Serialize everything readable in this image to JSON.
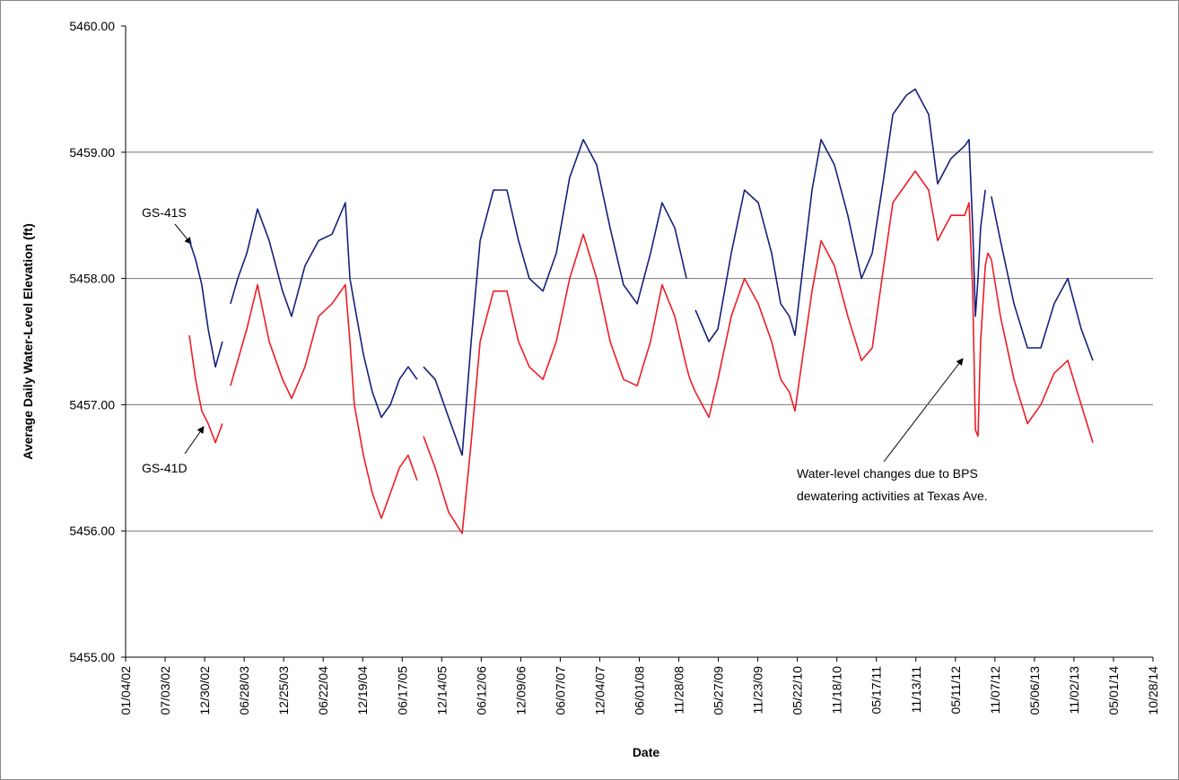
{
  "chart_data": {
    "type": "line",
    "x_label": "Date",
    "y_label": "Average Daily Water-Level Elevation  (ft)",
    "annotations": [
      {
        "text": [
          "GS-41S"
        ]
      },
      {
        "text": [
          "GS-41D"
        ]
      },
      {
        "text": [
          "Water-level changes due to BPS",
          "dewatering activities at Texas Ave."
        ]
      }
    ],
    "grid": true,
    "xlim": [
      "2002-01-04",
      "2014-10-28"
    ],
    "xticks": [
      {
        "value": "2002-01-04",
        "label": "01/04/02"
      },
      {
        "value": "2002-07-03",
        "label": "07/03/02"
      },
      {
        "value": "2002-12-30",
        "label": "12/30/02"
      },
      {
        "value": "2003-06-28",
        "label": "06/28/03"
      },
      {
        "value": "2003-12-25",
        "label": "12/25/03"
      },
      {
        "value": "2004-06-22",
        "label": "06/22/04"
      },
      {
        "value": "2004-12-19",
        "label": "12/19/04"
      },
      {
        "value": "2005-06-17",
        "label": "06/17/05"
      },
      {
        "value": "2005-12-14",
        "label": "12/14/05"
      },
      {
        "value": "2006-06-12",
        "label": "06/12/06"
      },
      {
        "value": "2006-12-09",
        "label": "12/09/06"
      },
      {
        "value": "2007-06-07",
        "label": "06/07/07"
      },
      {
        "value": "2007-12-04",
        "label": "12/04/07"
      },
      {
        "value": "2008-06-01",
        "label": "06/01/08"
      },
      {
        "value": "2008-11-28",
        "label": "11/28/08"
      },
      {
        "value": "2009-05-27",
        "label": "05/27/09"
      },
      {
        "value": "2009-11-23",
        "label": "11/23/09"
      },
      {
        "value": "2010-05-22",
        "label": "05/22/10"
      },
      {
        "value": "2010-11-18",
        "label": "11/18/10"
      },
      {
        "value": "2011-05-17",
        "label": "05/17/11"
      },
      {
        "value": "2011-11-13",
        "label": "11/13/11"
      },
      {
        "value": "2012-05-11",
        "label": "05/11/12"
      },
      {
        "value": "2012-11-07",
        "label": "11/07/12"
      },
      {
        "value": "2013-05-06",
        "label": "05/06/13"
      },
      {
        "value": "2013-11-02",
        "label": "11/02/13"
      },
      {
        "value": "2014-05-01",
        "label": "05/01/14"
      },
      {
        "value": "2014-10-28",
        "label": "10/28/14"
      }
    ],
    "ylim": [
      5455,
      5460
    ],
    "yticks": [
      {
        "value": 5455,
        "label": "5455.00"
      },
      {
        "value": 5456,
        "label": "5456.00"
      },
      {
        "value": 5457,
        "label": "5457.00"
      },
      {
        "value": 5458,
        "label": "5458.00"
      },
      {
        "value": 5459,
        "label": "5459.00"
      },
      {
        "value": 5460,
        "label": "5460.00"
      }
    ],
    "x": [
      "2002-10-21",
      "2002-11-19",
      "2002-12-17",
      "2003-01-15",
      "2003-02-17",
      "2003-03-21",
      "2003-04-07",
      "2003-04-27",
      "2003-05-30",
      "2003-07-10",
      "2003-08-28",
      "2003-10-20",
      "2003-12-20",
      "2004-01-30",
      "2004-03-31",
      "2004-06-01",
      "2004-08-01",
      "2004-10-01",
      "2004-10-22",
      "2004-11-11",
      "2004-12-22",
      "2005-02-01",
      "2005-03-14",
      "2005-04-24",
      "2005-06-04",
      "2005-07-14",
      "2005-08-24",
      "2005-09-06",
      "2005-09-22",
      "2005-11-14",
      "2006-01-14",
      "2006-03-17",
      "2006-04-27",
      "2006-06-07",
      "2006-08-07",
      "2006-10-07",
      "2006-11-29",
      "2007-01-17",
      "2007-03-20",
      "2007-05-20",
      "2007-07-20",
      "2007-09-20",
      "2007-11-20",
      "2008-01-20",
      "2008-03-21",
      "2008-05-22",
      "2008-07-22",
      "2008-09-13",
      "2008-11-10",
      "2009-01-02",
      "2009-01-18",
      "2009-02-12",
      "2009-04-14",
      "2009-05-25",
      "2009-07-25",
      "2009-09-23",
      "2009-11-25",
      "2010-01-25",
      "2010-03-07",
      "2010-04-16",
      "2010-05-11",
      "2010-06-17",
      "2010-07-28",
      "2010-09-07",
      "2010-11-07",
      "2011-01-07",
      "2011-03-10",
      "2011-04-28",
      "2011-06-20",
      "2011-07-31",
      "2011-09-30",
      "2011-11-10",
      "2012-01-10",
      "2012-02-20",
      "2012-04-21",
      "2012-06-22",
      "2012-07-12",
      "2012-07-29",
      "2012-08-10",
      "2012-08-22",
      "2012-09-03",
      "2012-09-24",
      "2012-10-06",
      "2012-10-22",
      "2012-12-02",
      "2013-02-02",
      "2013-04-04",
      "2013-06-04",
      "2013-08-04",
      "2013-10-05",
      "2013-12-05",
      "2014-01-27"
    ],
    "series": [
      {
        "name": "GS-41S",
        "color": "#16207a",
        "values": [
          5458.3,
          5458.15,
          5457.95,
          5457.6,
          5457.3,
          5457.5,
          null,
          5457.8,
          5458.0,
          5458.2,
          5458.55,
          5458.3,
          5457.9,
          5457.7,
          5458.1,
          5458.3,
          5458.35,
          5458.6,
          5458.0,
          5457.8,
          5457.4,
          5457.1,
          5456.9,
          5457.0,
          5457.2,
          5457.3,
          5457.2,
          null,
          5457.3,
          5457.2,
          5456.9,
          5456.6,
          5457.5,
          5458.3,
          5458.7,
          5458.7,
          5458.3,
          5458.0,
          5457.9,
          5458.2,
          5458.8,
          5459.1,
          5458.9,
          5458.4,
          5457.95,
          5457.8,
          5458.2,
          5458.6,
          5458.4,
          5458.0,
          null,
          5457.75,
          5457.5,
          5457.6,
          5458.2,
          5458.7,
          5458.6,
          5458.2,
          5457.8,
          5457.7,
          5457.55,
          5458.1,
          5458.7,
          5459.1,
          5458.9,
          5458.5,
          5458.0,
          5458.2,
          5458.8,
          5459.3,
          5459.45,
          5459.5,
          5459.3,
          5458.75,
          5458.95,
          5459.05,
          5459.1,
          5458.4,
          5457.7,
          5458.0,
          5458.4,
          5458.7,
          null,
          5458.65,
          5458.3,
          5457.8,
          5457.45,
          5457.45,
          5457.8,
          5458.0,
          5457.6,
          5457.35
        ]
      },
      {
        "name": "GS-41D",
        "color": "#ee1c25",
        "values": [
          5457.55,
          5457.2,
          5456.95,
          5456.85,
          5456.7,
          5456.85,
          null,
          5457.15,
          5457.35,
          5457.6,
          5457.95,
          5457.5,
          5457.2,
          5457.05,
          5457.3,
          5457.7,
          5457.8,
          5457.95,
          5457.5,
          5457.0,
          5456.6,
          5456.3,
          5456.1,
          5456.3,
          5456.5,
          5456.6,
          5456.4,
          null,
          5456.75,
          5456.5,
          5456.15,
          5455.98,
          5456.7,
          5457.5,
          5457.9,
          5457.9,
          5457.5,
          5457.3,
          5457.2,
          5457.5,
          5458.0,
          5458.35,
          5458.0,
          5457.5,
          5457.2,
          5457.15,
          5457.5,
          5457.95,
          5457.7,
          5457.3,
          5457.2,
          5457.1,
          5456.9,
          5457.2,
          5457.7,
          5458.0,
          5457.8,
          5457.5,
          5457.2,
          5457.1,
          5456.95,
          5457.4,
          5457.9,
          5458.3,
          5458.1,
          5457.7,
          5457.35,
          5457.45,
          5458.1,
          5458.6,
          5458.75,
          5458.85,
          5458.7,
          5458.3,
          5458.5,
          5458.5,
          5458.6,
          5457.9,
          5456.8,
          5456.75,
          5457.5,
          5458.1,
          5458.2,
          5458.15,
          5457.7,
          5457.2,
          5456.85,
          5457.0,
          5457.25,
          5457.35,
          5457.0,
          5456.7
        ]
      }
    ]
  }
}
